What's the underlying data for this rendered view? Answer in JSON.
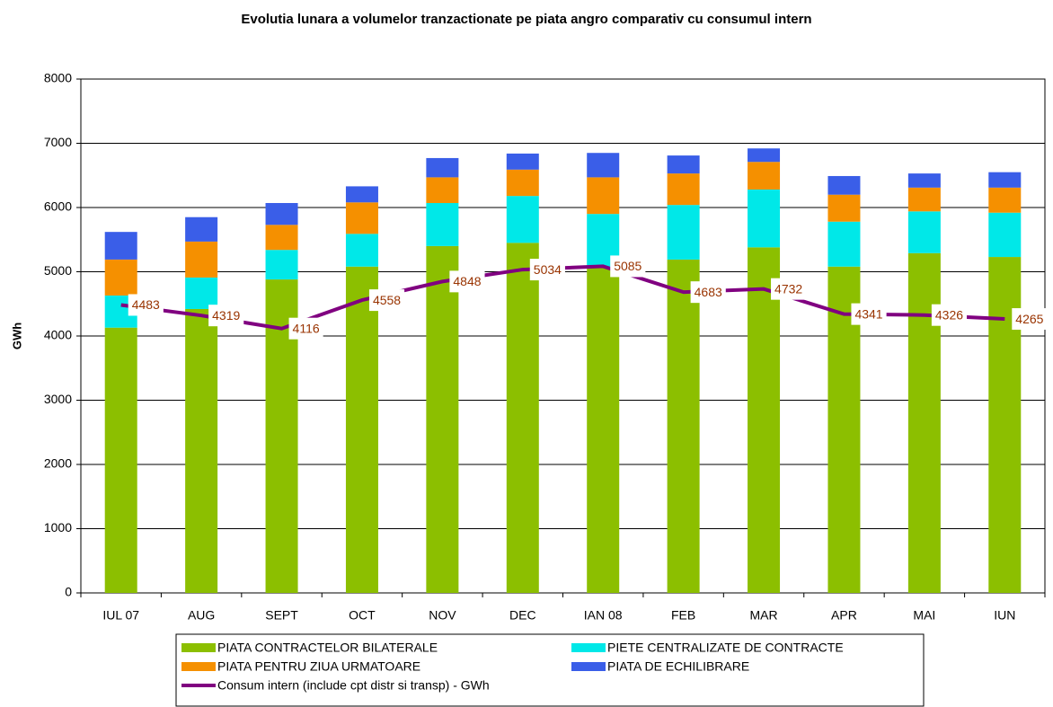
{
  "chart_data": {
    "type": "bar",
    "stacked": true,
    "title": "Evolutia lunara a volumelor tranzactionate pe piata angro comparativ cu consumul intern",
    "y_label": "GWh",
    "categories": [
      "IUL 07",
      "AUG",
      "SEPT",
      "OCT",
      "NOV",
      "DEC",
      "IAN 08",
      "FEB",
      "MAR",
      "APR",
      "MAI",
      "IUN"
    ],
    "series": [
      {
        "name": "PIATA CONTRACTELOR BILATERALE",
        "color": "#8cbf00",
        "values": [
          4130,
          4420,
          4880,
          5080,
          5400,
          5450,
          5060,
          5190,
          5380,
          5080,
          5290,
          5230
        ]
      },
      {
        "name": "PIETE CENTRALIZATE DE CONTRACTE",
        "color": "#00e8e8",
        "values": [
          500,
          490,
          460,
          510,
          670,
          730,
          840,
          850,
          900,
          700,
          650,
          690
        ]
      },
      {
        "name": "PIATA PENTRU ZIUA URMATOARE",
        "color": "#f59000",
        "values": [
          560,
          560,
          390,
          490,
          400,
          410,
          570,
          490,
          430,
          420,
          370,
          390
        ]
      },
      {
        "name": "PIATA DE ECHILIBRARE",
        "color": "#3a5ee8",
        "values": [
          430,
          380,
          340,
          250,
          300,
          250,
          380,
          280,
          210,
          290,
          220,
          240
        ]
      },
      {
        "name": "Consum intern (include cpt distr si transp) - GWh",
        "type": "line",
        "color": "#800080",
        "values": [
          4483,
          4319,
          4116,
          4558,
          4848,
          5034,
          5085,
          4683,
          4732,
          4341,
          4326,
          4265
        ]
      }
    ],
    "ylim": [
      0,
      8000
    ],
    "yticks": [
      0,
      1000,
      2000,
      3000,
      4000,
      5000,
      6000,
      7000,
      8000
    ],
    "grid": true
  }
}
